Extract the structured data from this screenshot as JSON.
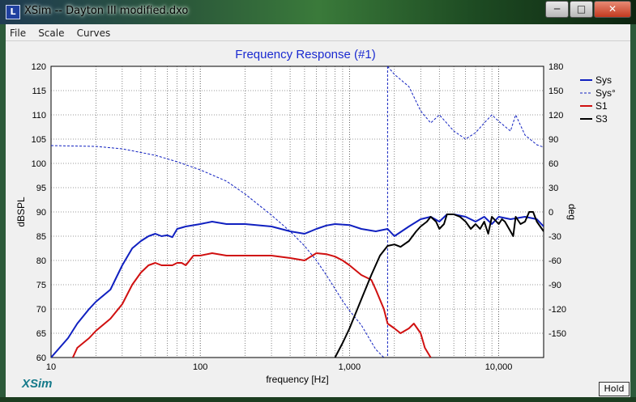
{
  "window": {
    "title": "XSim -- Dayton III modified.dxo",
    "icon": "app-icon",
    "controls": [
      "minimize-icon",
      "maximize-icon",
      "close-icon"
    ]
  },
  "menu": {
    "items": [
      "File",
      "Scale",
      "Curves"
    ]
  },
  "footer": {
    "logo": "XSim",
    "hold_label": "Hold"
  },
  "chart_data": {
    "type": "line",
    "title": "Frequency Response (#1)",
    "xlabel": "frequency [Hz]",
    "ylabel": "dBSPL",
    "y2label": "deg",
    "x_scale": "log",
    "xlim": [
      10,
      20000
    ],
    "ylim": [
      60,
      120
    ],
    "y2lim": [
      -180,
      180
    ],
    "x_ticks": [
      10,
      100,
      1000,
      10000
    ],
    "x_tick_labels": [
      "10",
      "100",
      "1,000",
      "10,000"
    ],
    "y_ticks": [
      60,
      65,
      70,
      75,
      80,
      85,
      90,
      95,
      100,
      105,
      110,
      115,
      120
    ],
    "y2_ticks": [
      -150,
      -120,
      -90,
      -60,
      -30,
      0,
      30,
      60,
      90,
      120,
      150,
      180
    ],
    "grid": true,
    "legend": "right",
    "series": [
      {
        "name": "Sys",
        "color": "#1020c0",
        "width": 2,
        "axis": "left",
        "x": [
          10,
          13,
          15,
          18,
          20,
          25,
          30,
          35,
          40,
          45,
          50,
          55,
          60,
          65,
          70,
          80,
          100,
          120,
          150,
          200,
          300,
          400,
          500,
          600,
          700,
          800,
          1000,
          1200,
          1500,
          1800,
          2000,
          2500,
          3000,
          3500,
          4000,
          4500,
          5000,
          6000,
          7000,
          8000,
          9000,
          10000,
          12000,
          15000,
          18000,
          20000
        ],
        "y": [
          60,
          64,
          67,
          70,
          71.5,
          74,
          79,
          82.5,
          84,
          85,
          85.5,
          85,
          85.2,
          84.8,
          86.5,
          87,
          87.5,
          88,
          87.5,
          87.5,
          87,
          86,
          85.5,
          86.5,
          87.2,
          87.5,
          87.3,
          86.5,
          86,
          86.5,
          85,
          87,
          88.5,
          89,
          88,
          89.5,
          89.5,
          89,
          88,
          89,
          87.5,
          89,
          88.5,
          89,
          88.5,
          87
        ]
      },
      {
        "name": "Sys°",
        "color": "#1020c0",
        "width": 1,
        "dash": "3,2",
        "axis": "right",
        "x": [
          10,
          20,
          30,
          50,
          70,
          100,
          150,
          200,
          300,
          400,
          500,
          600,
          700,
          800,
          900,
          1000,
          1200,
          1500,
          1700,
          1800,
          2000,
          2500,
          3000,
          3500,
          4000,
          5000,
          6000,
          7000,
          8000,
          9000,
          10000,
          12000,
          13000,
          15000,
          18000,
          20000
        ],
        "y": [
          82,
          81,
          78,
          70,
          62,
          52,
          38,
          22,
          -4,
          -24,
          -42,
          -60,
          -78,
          -95,
          -110,
          -122,
          -140,
          -170,
          -180,
          180,
          170,
          155,
          125,
          110,
          120,
          100,
          90,
          98,
          110,
          120,
          112,
          100,
          120,
          95,
          83,
          80
        ]
      },
      {
        "name": "S1",
        "color": "#d01010",
        "width": 2,
        "axis": "left",
        "x": [
          14,
          15,
          18,
          20,
          25,
          30,
          35,
          40,
          45,
          50,
          55,
          60,
          65,
          70,
          75,
          80,
          90,
          100,
          120,
          150,
          200,
          300,
          400,
          500,
          600,
          700,
          800,
          900,
          1000,
          1200,
          1400,
          1500,
          1700,
          1800,
          2000,
          2200,
          2500,
          2700,
          3000,
          3200,
          3500
        ],
        "y": [
          60,
          62,
          64,
          65.5,
          68,
          71,
          75,
          77.5,
          79,
          79.5,
          79,
          79,
          79,
          79.5,
          79.5,
          79,
          81,
          81,
          81.5,
          81,
          81,
          81,
          80.5,
          80,
          81.5,
          81.3,
          80.8,
          80,
          79,
          77,
          76,
          74,
          70,
          67,
          66,
          65,
          66,
          67,
          65,
          62,
          60
        ]
      },
      {
        "name": "S3",
        "color": "#000000",
        "width": 2,
        "axis": "left",
        "x": [
          800,
          900,
          1000,
          1200,
          1400,
          1600,
          1800,
          2000,
          2200,
          2500,
          2800,
          3000,
          3300,
          3500,
          3800,
          4000,
          4300,
          4500,
          5000,
          5500,
          6000,
          6500,
          7000,
          7500,
          8000,
          8500,
          9000,
          10000,
          10500,
          11000,
          12000,
          12500,
          13000,
          14000,
          15000,
          16000,
          17000,
          18000,
          20000
        ],
        "y": [
          60,
          63,
          66,
          72,
          77,
          81,
          83,
          83.3,
          82.8,
          84,
          86,
          87,
          88,
          89,
          88,
          86.5,
          87.5,
          89.5,
          89.5,
          89,
          88,
          86.5,
          87.5,
          86.5,
          88,
          85.5,
          89,
          87.5,
          88.5,
          88,
          86,
          85,
          89,
          87.5,
          88,
          90,
          90,
          88,
          86
        ]
      }
    ]
  }
}
